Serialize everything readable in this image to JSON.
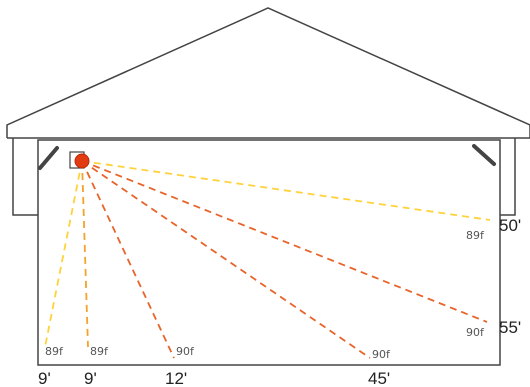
{
  "colors": {
    "outline": "#444444",
    "heater": "#e23b12",
    "ray_near": "#ffd23c",
    "ray_mid": "#f5a12a",
    "ray_far": "#e8642a"
  },
  "heater": {
    "icon": "heater-icon"
  },
  "rays": [
    {
      "id": "ray-left-wall",
      "temp": "89f",
      "distance": "9'"
    },
    {
      "id": "ray-floor-near",
      "temp": "89f",
      "distance": "9'"
    },
    {
      "id": "ray-floor-mid",
      "temp": "90f",
      "distance": "12'"
    },
    {
      "id": "ray-floor-far",
      "temp": "90f",
      "distance": "45'"
    },
    {
      "id": "ray-right-low",
      "temp": "90f",
      "distance": "55'"
    },
    {
      "id": "ray-right-high",
      "temp": "89f",
      "distance": "50'"
    }
  ]
}
